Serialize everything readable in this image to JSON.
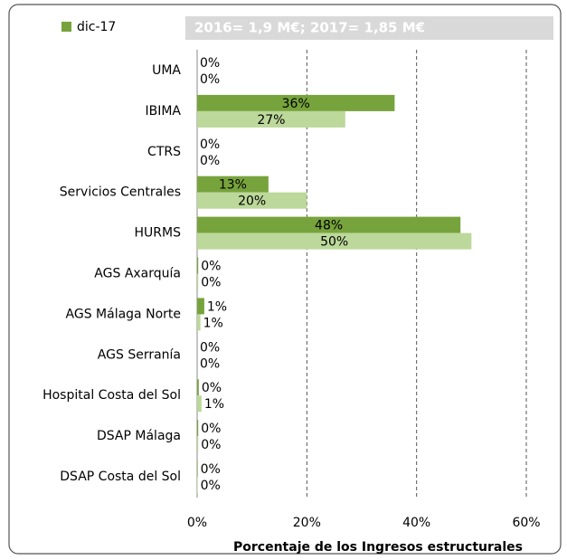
{
  "chart_data": {
    "type": "bar",
    "orientation": "horizontal",
    "annotation": "2016= 1,9 M€; 2017= 1,85 M€",
    "x_label": "Porcentaje de los Ingresos estructurales",
    "categories": [
      "UMA",
      "IBIMA",
      "CTRS",
      "Servicios Centrales",
      "HURMS",
      "AGS Axarquía",
      "AGS Málaga Norte",
      "AGS Serranía",
      "Hospital Costa del Sol",
      "DSAP Málaga",
      "DSAP Costa del Sol"
    ],
    "series": [
      {
        "name": "dic-17",
        "color": "#77a33c",
        "values": [
          0,
          36,
          0,
          13,
          48,
          0.2,
          1.3,
          0,
          0.3,
          0.2,
          0.1
        ],
        "value_labels": [
          "0%",
          "36%",
          "0%",
          "13%",
          "48%",
          "0%",
          "1%",
          "0%",
          "0%",
          "0%",
          "0%"
        ]
      },
      {
        "color": "#bcd89a",
        "values": [
          0,
          27,
          0,
          20,
          50,
          0.2,
          0.6,
          0,
          0.8,
          0.2,
          0.1
        ],
        "value_labels": [
          "0%",
          "27%",
          "0%",
          "20%",
          "50%",
          "0%",
          "1%",
          "0%",
          "1%",
          "0%",
          "0%"
        ]
      }
    ],
    "xlim": [
      0,
      60
    ],
    "xticks": [
      {
        "value": 0,
        "label": "0%"
      },
      {
        "value": 20,
        "label": "20%"
      },
      {
        "value": 40,
        "label": "40%"
      },
      {
        "value": 60,
        "label": "60%"
      }
    ],
    "grid": true,
    "legend": "top-left"
  }
}
